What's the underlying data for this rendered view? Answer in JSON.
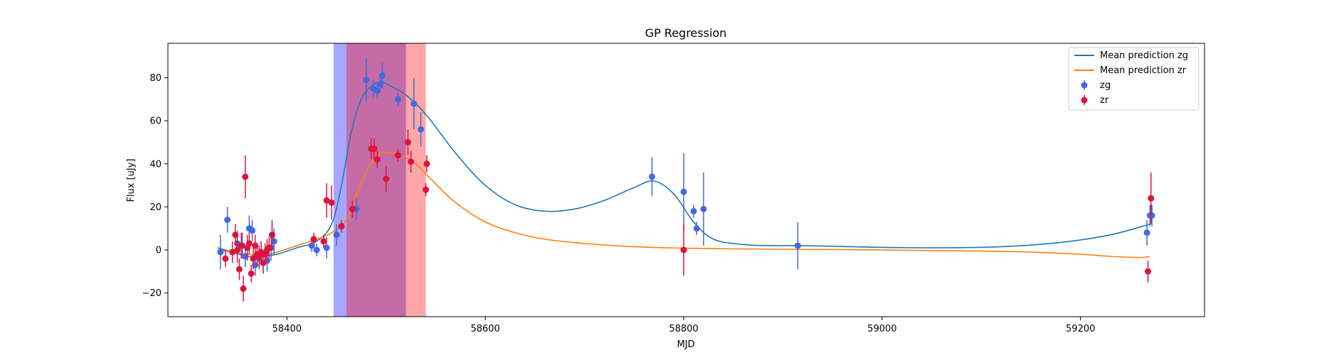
{
  "chart_data": {
    "type": "scatter",
    "title": "GP Regression",
    "xlabel": "MJD",
    "ylabel": "Flux [uJy]",
    "xlim": [
      58280,
      59325
    ],
    "ylim": [
      -31,
      96
    ],
    "xticks": [
      58400,
      58600,
      58800,
      59000,
      59200
    ],
    "yticks": [
      -20,
      0,
      20,
      40,
      60,
      80
    ],
    "grid": false,
    "legend_position": "top-right",
    "shaded_regions": [
      {
        "x0": 58447,
        "x1": 58520,
        "color": "#0000ff",
        "alpha": 0.35
      },
      {
        "x0": 58460,
        "x1": 58540,
        "color": "#ff0000",
        "alpha": 0.35
      }
    ],
    "lines": [
      {
        "name": "Mean prediction zg",
        "color": "#1f77b4",
        "x": [
          58330,
          58345,
          58360,
          58375,
          58390,
          58410,
          58430,
          58445,
          58455,
          58465,
          58475,
          58485,
          58495,
          58505,
          58520,
          58540,
          58570,
          58600,
          58630,
          58660,
          58690,
          58720,
          58750,
          58770,
          58790,
          58810,
          58830,
          58860,
          58890,
          58920,
          58960,
          59000,
          59060,
          59120,
          59180,
          59230,
          59270
        ],
        "y": [
          1,
          -1,
          -3,
          -3,
          -2,
          1,
          4,
          12,
          30,
          55,
          70,
          76,
          78,
          76,
          72,
          63,
          45,
          30,
          21,
          18,
          19,
          23,
          29,
          32,
          26,
          13,
          5,
          2.5,
          2,
          2,
          1.6,
          1.2,
          1,
          1.5,
          3.5,
          7,
          12
        ]
      },
      {
        "name": "Mean prediction zr",
        "color": "#ff7f0e",
        "x": [
          58330,
          58345,
          58360,
          58375,
          58390,
          58410,
          58430,
          58445,
          58460,
          58472,
          58485,
          58495,
          58505,
          58515,
          58530,
          58545,
          58570,
          58600,
          58630,
          58660,
          58700,
          58750,
          58800,
          58850,
          58900,
          58950,
          59000,
          59050,
          59100,
          59150,
          59200,
          59230,
          59260,
          59270
        ],
        "y": [
          0,
          -1,
          -2,
          -2.5,
          -1,
          2,
          5,
          8,
          14,
          28,
          40,
          45,
          45,
          44,
          40,
          33,
          22,
          13,
          8,
          5,
          3,
          1.5,
          0.8,
          0.5,
          0.3,
          0.2,
          0,
          -0.3,
          -0.5,
          -1,
          -2,
          -3,
          -3.5,
          -3
        ]
      }
    ],
    "series": [
      {
        "name": "zg",
        "color": "#4169e1",
        "x": [
          58333,
          58340,
          58350,
          58355,
          58358,
          58362,
          58365,
          58368,
          58372,
          58376,
          58380,
          58384,
          58387,
          58425,
          58430,
          58440,
          58450,
          58470,
          58480,
          58487,
          58491,
          58494,
          58496,
          58512,
          58528,
          58535,
          58768,
          58800,
          58810,
          58813,
          58820,
          58915,
          59267,
          59270,
          59272
        ],
        "y": [
          -1,
          14,
          3,
          2,
          -3,
          10,
          9,
          -7,
          -4,
          -6,
          -5,
          1,
          4,
          2,
          0,
          1,
          7,
          19,
          79,
          75,
          74,
          77,
          81,
          70,
          68,
          56,
          34,
          27,
          18,
          10,
          19,
          2,
          8,
          16,
          16
        ],
        "yerr": [
          8,
          6,
          6,
          6,
          5,
          6,
          5,
          5,
          5,
          5,
          5,
          6,
          6,
          3,
          3,
          5,
          5,
          5,
          10,
          4,
          4,
          4,
          6,
          3,
          12,
          8,
          9,
          18,
          3,
          3,
          17,
          11,
          6,
          5,
          5
        ]
      },
      {
        "name": "zr",
        "color": "#dc143c",
        "x": [
          58338,
          58345,
          58348,
          58350,
          58352,
          58354,
          58356,
          58358,
          58360,
          58362,
          58364,
          58366,
          58368,
          58370,
          58372,
          58374,
          58376,
          58378,
          58380,
          58382,
          58385,
          58427,
          58437,
          58440,
          58445,
          58455,
          58466,
          58485,
          58488,
          58491,
          58500,
          58512,
          58522,
          58525,
          58540,
          58541,
          58800,
          59268,
          59271
        ],
        "y": [
          -4,
          -1,
          7,
          0,
          -9,
          2,
          -18,
          34,
          1,
          3,
          -11,
          -4,
          2,
          -2,
          -3,
          -1,
          -6,
          -2,
          0,
          1,
          7,
          5,
          4,
          23,
          22,
          11,
          19,
          47,
          47,
          42,
          33,
          44,
          50,
          41,
          28,
          40,
          0,
          -10,
          24
        ],
        "yerr": [
          4,
          5,
          5,
          6,
          5,
          6,
          6,
          10,
          6,
          5,
          4,
          5,
          5,
          5,
          5,
          5,
          5,
          5,
          5,
          5,
          7,
          3,
          3,
          8,
          8,
          3,
          4,
          5,
          5,
          4,
          6,
          3,
          6,
          5,
          3,
          4,
          12,
          5,
          12
        ]
      }
    ]
  }
}
